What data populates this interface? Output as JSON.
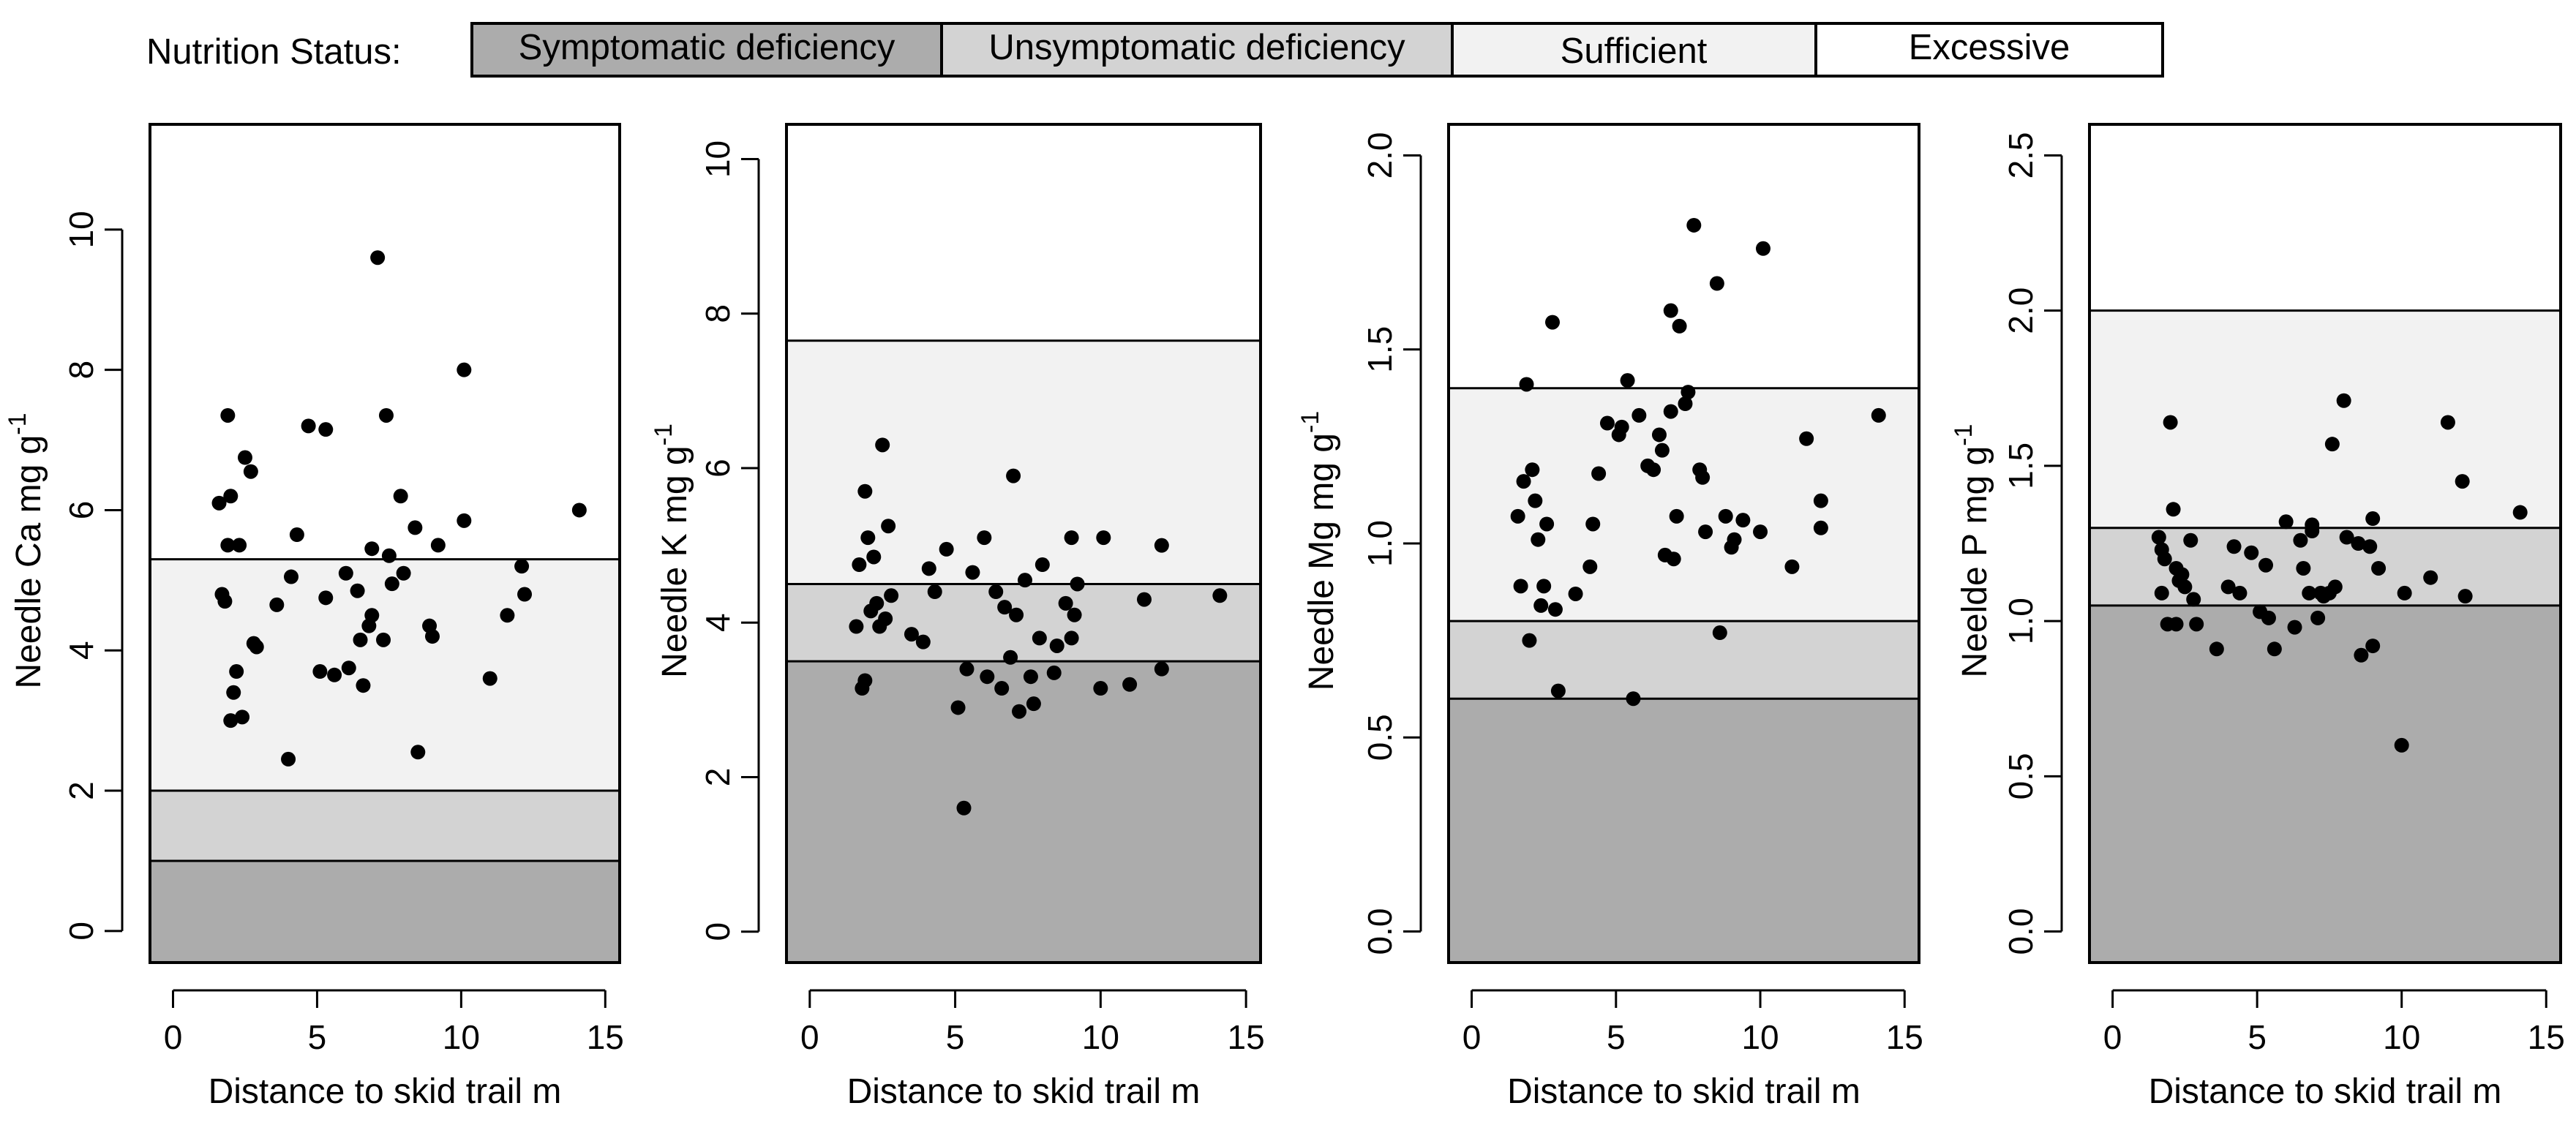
{
  "colors": {
    "symptomatic": "#acacac",
    "unsymptomatic": "#d3d3d3",
    "sufficient": "#f2f2f2",
    "excessive": "#ffffff",
    "ink": "#000000"
  },
  "legend": {
    "title": "Nutrition Status:",
    "items": [
      {
        "label": "Symptomatic deficiency",
        "color": "#acacac"
      },
      {
        "label": "Unsymptomatic deficiency",
        "color": "#d3d3d3"
      },
      {
        "label": "Sufficient",
        "color": "#f2f2f2"
      },
      {
        "label": "Excessive",
        "color": "#ffffff"
      }
    ]
  },
  "chart_data": [
    {
      "type": "scatter",
      "title": "",
      "xlabel": "Distance to skid trail  m",
      "ylabel_prefix": "Needle Ca  mg g",
      "ylabel_sup": "-1",
      "xlim": [
        -0.8,
        15.5
      ],
      "ylim": [
        -0.45,
        11.5
      ],
      "xticks": [
        0,
        5,
        10,
        15
      ],
      "yticks": [
        0,
        2,
        4,
        6,
        8,
        10
      ],
      "thresholds": [
        1.0,
        2.0,
        5.3
      ],
      "points": [
        [
          1.6,
          6.1
        ],
        [
          1.7,
          4.8
        ],
        [
          1.8,
          4.7
        ],
        [
          1.9,
          7.35
        ],
        [
          1.9,
          5.5
        ],
        [
          2.0,
          3.0
        ],
        [
          2.0,
          6.2
        ],
        [
          2.1,
          3.4
        ],
        [
          2.2,
          3.7
        ],
        [
          2.3,
          5.5
        ],
        [
          2.4,
          3.05
        ],
        [
          2.5,
          6.75
        ],
        [
          2.7,
          6.55
        ],
        [
          2.8,
          4.1
        ],
        [
          2.9,
          4.05
        ],
        [
          3.6,
          4.65
        ],
        [
          4.0,
          2.45
        ],
        [
          4.1,
          5.05
        ],
        [
          4.3,
          5.65
        ],
        [
          4.7,
          7.2
        ],
        [
          5.1,
          3.7
        ],
        [
          5.3,
          4.75
        ],
        [
          5.3,
          7.15
        ],
        [
          5.6,
          3.65
        ],
        [
          6.0,
          5.1
        ],
        [
          6.1,
          3.75
        ],
        [
          6.4,
          4.85
        ],
        [
          6.5,
          4.15
        ],
        [
          6.6,
          3.5
        ],
        [
          6.8,
          4.35
        ],
        [
          6.9,
          4.5
        ],
        [
          6.9,
          5.45
        ],
        [
          7.1,
          9.6
        ],
        [
          7.3,
          4.15
        ],
        [
          7.4,
          7.35
        ],
        [
          7.5,
          5.35
        ],
        [
          7.6,
          4.95
        ],
        [
          7.9,
          6.2
        ],
        [
          8.0,
          5.1
        ],
        [
          8.4,
          5.75
        ],
        [
          8.5,
          2.55
        ],
        [
          8.9,
          4.35
        ],
        [
          9.0,
          4.2
        ],
        [
          9.2,
          5.5
        ],
        [
          10.1,
          5.85
        ],
        [
          10.1,
          8.0
        ],
        [
          11.0,
          3.6
        ],
        [
          11.6,
          4.5
        ],
        [
          12.1,
          5.2
        ],
        [
          12.2,
          4.8
        ],
        [
          14.1,
          6.0
        ]
      ]
    },
    {
      "type": "scatter",
      "title": "",
      "xlabel": "Distance to skid trail  m",
      "ylabel_prefix": "Needle K  mg g",
      "ylabel_sup": "-1",
      "xlim": [
        -0.8,
        15.5
      ],
      "ylim": [
        -0.4,
        10.45
      ],
      "xticks": [
        0,
        5,
        10,
        15
      ],
      "yticks": [
        0,
        2,
        4,
        6,
        8,
        10
      ],
      "thresholds": [
        3.5,
        4.5,
        7.65
      ],
      "points": [
        [
          1.6,
          3.95
        ],
        [
          1.7,
          4.75
        ],
        [
          1.8,
          3.15
        ],
        [
          1.9,
          5.7
        ],
        [
          1.9,
          3.25
        ],
        [
          2.0,
          5.1
        ],
        [
          2.1,
          4.15
        ],
        [
          2.2,
          4.85
        ],
        [
          2.3,
          4.25
        ],
        [
          2.4,
          3.95
        ],
        [
          2.5,
          6.3
        ],
        [
          2.6,
          4.05
        ],
        [
          2.7,
          5.25
        ],
        [
          2.8,
          4.35
        ],
        [
          3.5,
          3.85
        ],
        [
          3.9,
          3.75
        ],
        [
          4.1,
          4.7
        ],
        [
          4.3,
          4.4
        ],
        [
          4.7,
          4.95
        ],
        [
          5.1,
          2.9
        ],
        [
          5.3,
          1.6
        ],
        [
          5.4,
          3.4
        ],
        [
          5.6,
          4.65
        ],
        [
          6.0,
          5.1
        ],
        [
          6.1,
          3.3
        ],
        [
          6.4,
          4.4
        ],
        [
          6.6,
          3.15
        ],
        [
          6.7,
          4.2
        ],
        [
          6.9,
          3.55
        ],
        [
          7.0,
          5.9
        ],
        [
          7.1,
          4.1
        ],
        [
          7.2,
          2.85
        ],
        [
          7.4,
          4.55
        ],
        [
          7.6,
          3.3
        ],
        [
          7.7,
          2.95
        ],
        [
          7.9,
          3.8
        ],
        [
          8.0,
          4.75
        ],
        [
          8.4,
          3.35
        ],
        [
          8.5,
          3.7
        ],
        [
          8.8,
          4.25
        ],
        [
          9.0,
          5.1
        ],
        [
          9.0,
          3.8
        ],
        [
          9.1,
          4.1
        ],
        [
          9.2,
          4.5
        ],
        [
          10.0,
          3.15
        ],
        [
          10.1,
          5.1
        ],
        [
          11.0,
          3.2
        ],
        [
          11.5,
          4.3
        ],
        [
          12.1,
          5.0
        ],
        [
          12.1,
          3.4
        ],
        [
          14.1,
          4.35
        ]
      ]
    },
    {
      "type": "scatter",
      "title": "",
      "xlabel": "Distance to skid trail  m",
      "ylabel_prefix": "Needle Mg  mg g",
      "ylabel_sup": "-1",
      "xlim": [
        -0.8,
        15.5
      ],
      "ylim": [
        -0.08,
        2.08
      ],
      "xticks": [
        0,
        5,
        10,
        15
      ],
      "yticks": [
        0.0,
        0.5,
        1.0,
        1.5,
        2.0
      ],
      "ytick_labels": [
        "0.0",
        "0.5",
        "1.0",
        "1.5",
        "2.0"
      ],
      "thresholds": [
        0.6,
        0.8,
        1.4
      ],
      "points": [
        [
          1.6,
          1.07
        ],
        [
          1.7,
          0.89
        ],
        [
          1.8,
          1.16
        ],
        [
          1.9,
          1.41
        ],
        [
          2.0,
          0.75
        ],
        [
          2.1,
          1.19
        ],
        [
          2.2,
          1.11
        ],
        [
          2.3,
          1.01
        ],
        [
          2.4,
          0.84
        ],
        [
          2.5,
          0.89
        ],
        [
          2.6,
          1.05
        ],
        [
          2.8,
          1.57
        ],
        [
          2.9,
          0.83
        ],
        [
          3.0,
          0.62
        ],
        [
          3.6,
          0.87
        ],
        [
          4.1,
          0.94
        ],
        [
          4.2,
          1.05
        ],
        [
          4.4,
          1.18
        ],
        [
          4.7,
          1.31
        ],
        [
          5.1,
          1.28
        ],
        [
          5.2,
          1.3
        ],
        [
          5.4,
          1.42
        ],
        [
          5.6,
          0.6
        ],
        [
          5.8,
          1.33
        ],
        [
          6.1,
          1.2
        ],
        [
          6.3,
          1.19
        ],
        [
          6.5,
          1.28
        ],
        [
          6.6,
          1.24
        ],
        [
          6.7,
          0.97
        ],
        [
          6.9,
          1.6
        ],
        [
          6.9,
          1.34
        ],
        [
          7.0,
          0.96
        ],
        [
          7.1,
          1.07
        ],
        [
          7.2,
          1.56
        ],
        [
          7.4,
          1.36
        ],
        [
          7.5,
          1.39
        ],
        [
          7.7,
          1.82
        ],
        [
          7.9,
          1.19
        ],
        [
          8.0,
          1.17
        ],
        [
          8.1,
          1.03
        ],
        [
          8.5,
          1.67
        ],
        [
          8.6,
          0.77
        ],
        [
          8.8,
          1.07
        ],
        [
          9.0,
          0.99
        ],
        [
          9.1,
          1.01
        ],
        [
          9.4,
          1.06
        ],
        [
          10.0,
          1.03
        ],
        [
          10.1,
          1.76
        ],
        [
          11.1,
          0.94
        ],
        [
          11.6,
          1.27
        ],
        [
          12.1,
          1.11
        ],
        [
          12.1,
          1.04
        ],
        [
          14.1,
          1.33
        ]
      ]
    },
    {
      "type": "scatter",
      "title": "",
      "xlabel": "Distance to skid trail  m",
      "ylabel_prefix": "Neelde P  mg g",
      "ylabel_sup": "-1",
      "xlim": [
        -0.8,
        15.5
      ],
      "ylim": [
        -0.1,
        2.6
      ],
      "xticks": [
        0,
        5,
        10,
        15
      ],
      "yticks": [
        0.0,
        0.5,
        1.0,
        1.5,
        2.0,
        2.5
      ],
      "ytick_labels": [
        "0.0",
        "0.5",
        "1.0",
        "1.5",
        "2.0",
        "2.5"
      ],
      "thresholds": [
        1.05,
        1.3,
        2.0
      ],
      "points": [
        [
          1.6,
          1.27
        ],
        [
          1.7,
          1.23
        ],
        [
          1.7,
          1.09
        ],
        [
          1.8,
          1.2
        ],
        [
          1.9,
          0.99
        ],
        [
          2.0,
          1.64
        ],
        [
          2.1,
          1.36
        ],
        [
          2.2,
          1.17
        ],
        [
          2.2,
          0.99
        ],
        [
          2.3,
          1.13
        ],
        [
          2.4,
          1.15
        ],
        [
          2.5,
          1.11
        ],
        [
          2.7,
          1.26
        ],
        [
          2.8,
          1.07
        ],
        [
          2.9,
          0.99
        ],
        [
          3.6,
          0.91
        ],
        [
          4.0,
          1.11
        ],
        [
          4.2,
          1.24
        ],
        [
          4.4,
          1.09
        ],
        [
          4.8,
          1.22
        ],
        [
          5.1,
          1.03
        ],
        [
          5.3,
          1.18
        ],
        [
          5.4,
          1.01
        ],
        [
          5.6,
          0.91
        ],
        [
          6.0,
          1.32
        ],
        [
          6.3,
          0.98
        ],
        [
          6.5,
          1.26
        ],
        [
          6.6,
          1.17
        ],
        [
          6.8,
          1.09
        ],
        [
          6.9,
          1.29
        ],
        [
          6.9,
          1.31
        ],
        [
          7.1,
          1.01
        ],
        [
          7.2,
          1.09
        ],
        [
          7.3,
          1.08
        ],
        [
          7.5,
          1.09
        ],
        [
          7.6,
          1.57
        ],
        [
          7.7,
          1.11
        ],
        [
          8.0,
          1.71
        ],
        [
          8.1,
          1.27
        ],
        [
          8.5,
          1.25
        ],
        [
          8.6,
          0.89
        ],
        [
          8.9,
          1.24
        ],
        [
          9.0,
          0.92
        ],
        [
          9.0,
          1.33
        ],
        [
          9.2,
          1.17
        ],
        [
          10.0,
          0.6
        ],
        [
          10.1,
          1.09
        ],
        [
          11.0,
          1.14
        ],
        [
          11.6,
          1.64
        ],
        [
          12.1,
          1.45
        ],
        [
          12.2,
          1.08
        ],
        [
          14.1,
          1.35
        ]
      ]
    }
  ]
}
